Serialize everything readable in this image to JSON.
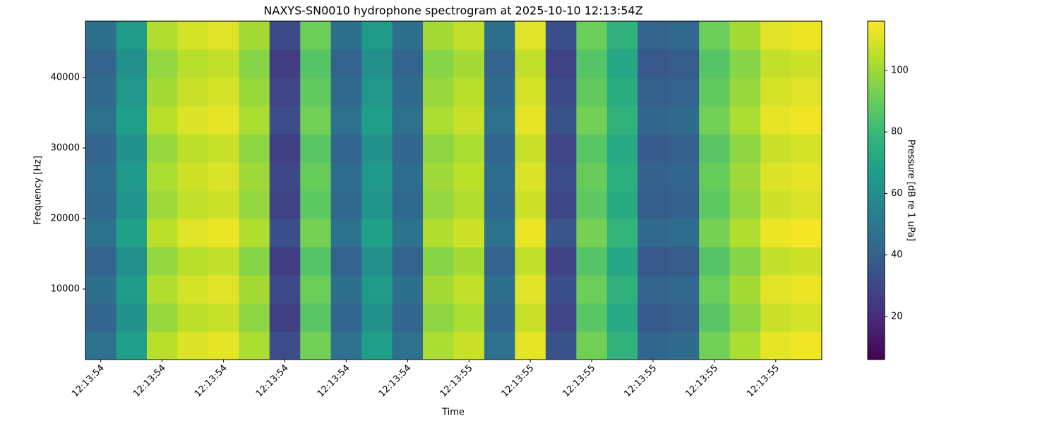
{
  "chart_data": {
    "type": "heatmap",
    "title": "NAXYS-SN0010 hydrophone spectrogram at 2025-10-10 12:13:54Z",
    "x_label": "Time",
    "y_label": "Frequency [Hz]",
    "colorbar_label": "Pressure [dB re 1 uPa]",
    "colormap": "viridis",
    "x": [
      "12:13:54",
      null,
      "12:13:54",
      null,
      "12:13:54",
      null,
      "12:13:54",
      null,
      "12:13:54",
      null,
      "12:13:54",
      null,
      "12:13:55",
      null,
      "12:13:55",
      null,
      "12:13:55",
      null,
      "12:13:55",
      null,
      "12:13:55",
      null,
      "12:13:55",
      null
    ],
    "ylim": [
      0,
      48000
    ],
    "yticks": [
      10000,
      20000,
      30000,
      40000
    ],
    "clim": [
      6,
      116
    ],
    "cticks": [
      20,
      40,
      60,
      80,
      100
    ],
    "values": [
      [
        47,
        67,
        104,
        110,
        112,
        102,
        32,
        92,
        47,
        67,
        47,
        102,
        107,
        47,
        112,
        34,
        92,
        77,
        42,
        44,
        92,
        102,
        112,
        114
      ],
      [
        42,
        62,
        99,
        105,
        107,
        97,
        27,
        87,
        42,
        62,
        42,
        97,
        102,
        42,
        107,
        29,
        87,
        72,
        37,
        39,
        87,
        97,
        107,
        109
      ],
      [
        46,
        66,
        103,
        109,
        111,
        101,
        31,
        91,
        46,
        66,
        46,
        101,
        106,
        46,
        111,
        33,
        91,
        76,
        41,
        43,
        91,
        101,
        111,
        113
      ],
      [
        41,
        61,
        98,
        104,
        106,
        96,
        26,
        86,
        41,
        61,
        41,
        96,
        101,
        41,
        106,
        28,
        86,
        71,
        36,
        38,
        86,
        96,
        106,
        108
      ],
      [
        48,
        68,
        105,
        111,
        113,
        103,
        33,
        93,
        48,
        68,
        48,
        103,
        108,
        48,
        113,
        35,
        93,
        78,
        43,
        45,
        93,
        103,
        113,
        115
      ],
      [
        43,
        63,
        100,
        106,
        108,
        98,
        28,
        88,
        43,
        63,
        43,
        98,
        103,
        43,
        108,
        30,
        88,
        73,
        38,
        40,
        88,
        98,
        108,
        110
      ],
      [
        45,
        65,
        102,
        108,
        110,
        100,
        30,
        90,
        45,
        65,
        45,
        100,
        105,
        45,
        110,
        32,
        90,
        75,
        40,
        42,
        90,
        100,
        110,
        112
      ],
      [
        42,
        62,
        99,
        105,
        107,
        97,
        27,
        87,
        42,
        62,
        42,
        97,
        102,
        42,
        107,
        29,
        87,
        72,
        37,
        39,
        87,
        97,
        107,
        109
      ],
      [
        47,
        67,
        104,
        110,
        112,
        102,
        32,
        92,
        47,
        67,
        47,
        102,
        107,
        47,
        112,
        34,
        92,
        77,
        42,
        44,
        92,
        102,
        112,
        114
      ],
      [
        44,
        64,
        101,
        107,
        109,
        99,
        29,
        89,
        44,
        64,
        44,
        99,
        104,
        44,
        109,
        31,
        89,
        74,
        39,
        41,
        89,
        99,
        109,
        111
      ],
      [
        41,
        61,
        98,
        104,
        106,
        96,
        26,
        86,
        41,
        61,
        41,
        96,
        101,
        41,
        106,
        28,
        86,
        71,
        36,
        38,
        86,
        96,
        106,
        108
      ],
      [
        46,
        66,
        103,
        109,
        111,
        101,
        31,
        91,
        46,
        66,
        46,
        101,
        106,
        46,
        111,
        33,
        91,
        76,
        41,
        43,
        91,
        101,
        111,
        113
      ]
    ]
  }
}
